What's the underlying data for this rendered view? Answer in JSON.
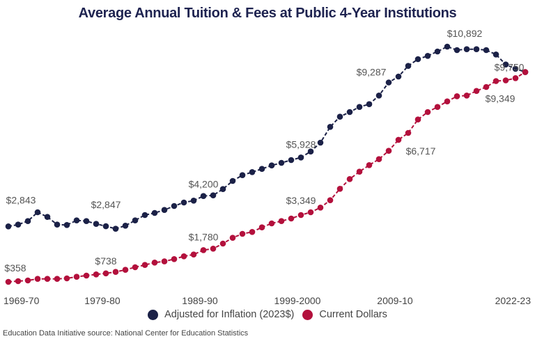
{
  "chart_data": {
    "type": "line",
    "title": "Average Annual Tuition & Fees at Public 4-Year Institutions",
    "x_tick_labels": [
      {
        "index": 0,
        "label": "1969-70"
      },
      {
        "index": 10,
        "label": "1979-80"
      },
      {
        "index": 20,
        "label": "1989-90"
      },
      {
        "index": 30,
        "label": "1999-2000"
      },
      {
        "index": 40,
        "label": "2009-10"
      },
      {
        "index": 53,
        "label": "2022-23"
      }
    ],
    "x_range": [
      "1969-70",
      "2022-23"
    ],
    "points_per_series": 54,
    "grid": false,
    "legend_position": "bottom",
    "series": [
      {
        "name": "Adjusted for Inflation (2023$)",
        "color": "#1b2147",
        "values": [
          2843,
          2923,
          3078,
          3474,
          3266,
          2923,
          2903,
          3110,
          3078,
          2954,
          2847,
          2736,
          2872,
          3110,
          3350,
          3443,
          3578,
          3755,
          3910,
          3994,
          4200,
          4230,
          4512,
          4876,
          5136,
          5272,
          5415,
          5571,
          5686,
          5811,
          5928,
          6194,
          6590,
          7297,
          7752,
          7961,
          8189,
          8313,
          8699,
          9287,
          9550,
          10027,
          10330,
          10476,
          10672,
          10892,
          10734,
          10776,
          10776,
          10734,
          10538,
          10090,
          9900,
          9750
        ]
      },
      {
        "name": "Current Dollars",
        "color": "#b3103c",
        "values": [
          358,
          389,
          420,
          492,
          492,
          492,
          514,
          586,
          638,
          691,
          738,
          805,
          897,
          1012,
          1116,
          1221,
          1273,
          1377,
          1502,
          1583,
          1780,
          1844,
          2072,
          2330,
          2508,
          2592,
          2798,
          2975,
          3078,
          3194,
          3349,
          3474,
          3683,
          4013,
          4524,
          4960,
          5291,
          5584,
          5852,
          6226,
          6717,
          7026,
          7628,
          7961,
          8189,
          8438,
          8668,
          8699,
          8905,
          9083,
          9349,
          9380,
          9478,
          9750
        ]
      }
    ],
    "data_labels": [
      {
        "series": 0,
        "index": 0,
        "text": "$2,843"
      },
      {
        "series": 0,
        "index": 10,
        "text": "$2,847"
      },
      {
        "series": 0,
        "index": 20,
        "text": "$4,200"
      },
      {
        "series": 0,
        "index": 30,
        "text": "$5,928"
      },
      {
        "series": 0,
        "index": 39,
        "text": "$9,287"
      },
      {
        "series": 0,
        "index": 45,
        "text": "$10,892"
      },
      {
        "series": 0,
        "index": 53,
        "text": "$9,750"
      },
      {
        "series": 1,
        "index": 0,
        "text": "$358"
      },
      {
        "series": 1,
        "index": 10,
        "text": "$738"
      },
      {
        "series": 1,
        "index": 20,
        "text": "$1,780"
      },
      {
        "series": 1,
        "index": 30,
        "text": "$3,349"
      },
      {
        "series": 1,
        "index": 40,
        "text": "$6,717"
      },
      {
        "series": 1,
        "index": 50,
        "text": "$9,349"
      }
    ]
  },
  "legend": [
    {
      "label": "Adjusted for Inflation (2023$)",
      "color": "#1b2147"
    },
    {
      "label": "Current Dollars",
      "color": "#b3103c"
    }
  ],
  "footer": "Education Data Initiative source: National Center for Education Statistics"
}
